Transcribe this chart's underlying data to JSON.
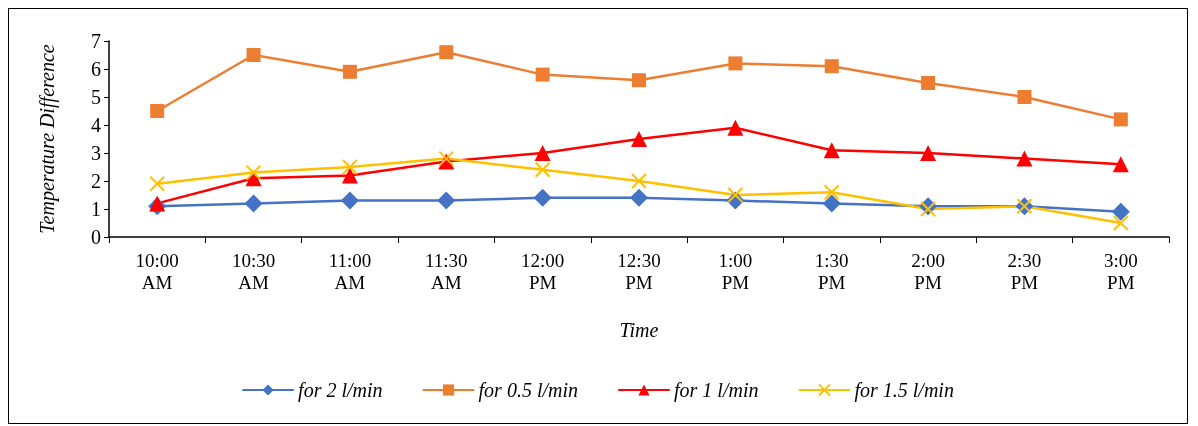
{
  "chart_data": {
    "type": "line",
    "xlabel": "Time",
    "ylabel": "Temperature Difference",
    "categories": [
      "10:00\nAM",
      "10:30\nAM",
      "11:00\nAM",
      "11:30\nAM",
      "12:00\nPM",
      "12:30\nPM",
      "1:00\nPM",
      "1:30\nPM",
      "2:00\nPM",
      "2:30\nPM",
      "3:00\nPM"
    ],
    "series": [
      {
        "name": "for 2 l/min",
        "color": "#4472c4",
        "marker": "diamond",
        "values": [
          1.1,
          1.2,
          1.3,
          1.3,
          1.4,
          1.4,
          1.3,
          1.2,
          1.1,
          1.1,
          0.9
        ]
      },
      {
        "name": "for 0.5 l/min",
        "color": "#ed7d31",
        "marker": "square",
        "values": [
          4.5,
          6.5,
          5.9,
          6.6,
          5.8,
          5.6,
          6.2,
          6.1,
          5.5,
          5.0,
          4.2
        ]
      },
      {
        "name": "for 1 l/min",
        "color": "#ff0000",
        "marker": "triangle",
        "values": [
          1.2,
          2.1,
          2.2,
          2.7,
          3.0,
          3.5,
          3.9,
          3.1,
          3.0,
          2.8,
          2.6
        ]
      },
      {
        "name": "for 1.5 l/min",
        "color": "#ffc000",
        "marker": "cross",
        "values": [
          1.9,
          2.3,
          2.5,
          2.8,
          2.4,
          2.0,
          1.5,
          1.6,
          1.0,
          1.1,
          0.5
        ]
      }
    ],
    "ylim": [
      0,
      7
    ],
    "yticks": [
      0,
      1,
      2,
      3,
      4,
      5,
      6,
      7
    ],
    "grid": false,
    "legend": "bottom",
    "line_style": "solid"
  }
}
